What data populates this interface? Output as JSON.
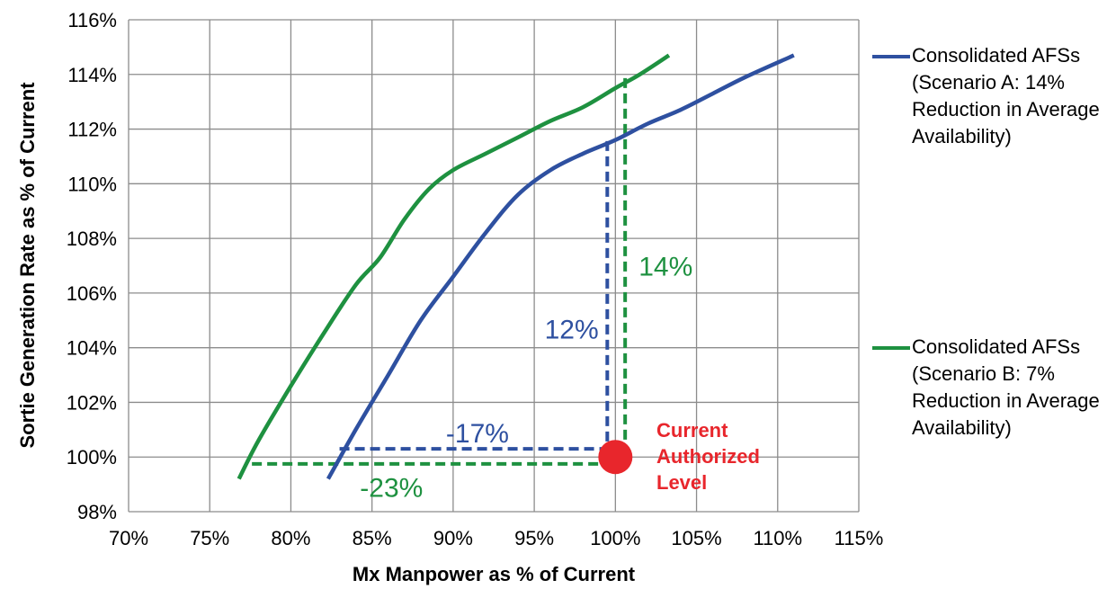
{
  "chart_data": {
    "type": "line",
    "title": "",
    "xlabel": "Mx Manpower as % of Current",
    "ylabel": "Sortie Generation Rate as % of Current",
    "xlim": [
      70,
      115
    ],
    "ylim": [
      98,
      116
    ],
    "xticks": [
      70,
      75,
      80,
      85,
      90,
      95,
      100,
      105,
      110,
      115
    ],
    "yticks": [
      98,
      100,
      102,
      104,
      106,
      108,
      110,
      112,
      114,
      116
    ],
    "xtick_labels": [
      "70%",
      "75%",
      "80%",
      "85%",
      "90%",
      "95%",
      "100%",
      "105%",
      "110%",
      "115%"
    ],
    "ytick_labels": [
      "98%",
      "100%",
      "102%",
      "104%",
      "106%",
      "108%",
      "110%",
      "112%",
      "114%",
      "116%"
    ],
    "grid": true,
    "legend_position": "right",
    "series": [
      {
        "name": "Consolidated AFSs (Scenario A: 14% Reduction in Average Availability)",
        "color": "#2e50a0",
        "points": [
          [
            82.3,
            99.2
          ],
          [
            84,
            101
          ],
          [
            86,
            103
          ],
          [
            88,
            105
          ],
          [
            90,
            106.6
          ],
          [
            92,
            108.2
          ],
          [
            94,
            109.6
          ],
          [
            96,
            110.5
          ],
          [
            98,
            111.1
          ],
          [
            100,
            111.6
          ],
          [
            102,
            112.2
          ],
          [
            104,
            112.7
          ],
          [
            106,
            113.3
          ],
          [
            108,
            113.9
          ],
          [
            111,
            114.7
          ]
        ]
      },
      {
        "name": "Consolidated AFSs (Scenario B: 7% Reduction in Average Availability)",
        "color": "#1e9140",
        "points": [
          [
            76.8,
            99.2
          ],
          [
            78,
            100.6
          ],
          [
            80,
            102.6
          ],
          [
            82,
            104.5
          ],
          [
            84,
            106.3
          ],
          [
            85.5,
            107.3
          ],
          [
            87,
            108.7
          ],
          [
            88.5,
            109.8
          ],
          [
            90,
            110.5
          ],
          [
            92,
            111.1
          ],
          [
            94,
            111.7
          ],
          [
            96,
            112.3
          ],
          [
            98,
            112.8
          ],
          [
            100,
            113.5
          ],
          [
            101.5,
            114
          ],
          [
            103.3,
            114.7
          ]
        ]
      }
    ],
    "current_level": {
      "x": 100,
      "y": 100,
      "color": "#e8262c",
      "label_lines": [
        "Current",
        "Authorized",
        "Level"
      ]
    },
    "guides": [
      {
        "color": "#2e50a0",
        "points": [
          [
            83,
            100.3
          ],
          [
            99.5,
            100.3
          ],
          [
            99.5,
            111.6
          ]
        ]
      },
      {
        "color": "#1e9140",
        "points": [
          [
            77.6,
            99.75
          ],
          [
            100.6,
            99.75
          ],
          [
            100.6,
            113.9
          ]
        ]
      }
    ],
    "annotations": [
      {
        "text": "12%",
        "color": "#2e50a0",
        "x": 97.3,
        "y": 104.7
      },
      {
        "text": "14%",
        "color": "#1e9140",
        "x": 103.1,
        "y": 107.0
      },
      {
        "text": "-17%",
        "color": "#2e50a0",
        "x": 91.5,
        "y": 100.9
      },
      {
        "text": "-23%",
        "color": "#1e9140",
        "x": 86.2,
        "y": 98.9
      }
    ]
  }
}
